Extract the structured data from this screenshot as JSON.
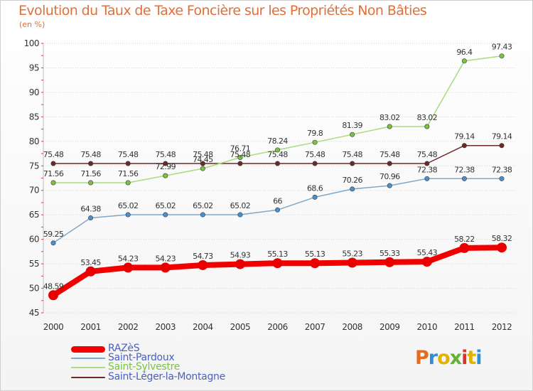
{
  "title": "Evolution du Taux de Taxe Foncière sur les Propriétés Non Bâties",
  "unit": "(en %)",
  "logo_text": "Proxiti",
  "chart_data": {
    "type": "line",
    "title": "Evolution du Taux de Taxe Foncière sur les Propriétés Non Bâties",
    "ylabel": "(en %)",
    "xlabel": "",
    "ylim": [
      45,
      100
    ],
    "yticks": [
      45,
      50,
      55,
      60,
      65,
      70,
      75,
      80,
      85,
      90,
      95,
      100
    ],
    "x": [
      "2000",
      "2001",
      "2002",
      "2003",
      "2004",
      "2005",
      "2006",
      "2007",
      "2008",
      "2009",
      "2010",
      "2011",
      "2012"
    ],
    "series": [
      {
        "name": "Saint-Léger-la-Montagne",
        "color": "#6b2a2a",
        "point_color": "#6b2a2a",
        "values": [
          75.48,
          75.48,
          75.48,
          75.48,
          75.48,
          75.48,
          75.48,
          75.48,
          75.48,
          75.48,
          75.48,
          79.14,
          79.14
        ],
        "labels": [
          "75.48",
          "75.48",
          "75.48",
          "75.48",
          "75.48",
          "75.48",
          "75.48",
          "75.48",
          "75.48",
          "75.48",
          "75.48",
          "79.14",
          "79.14"
        ]
      },
      {
        "name": "Saint-Sylvestre",
        "color": "#a8dc7c",
        "point_color": "#7cc242",
        "values": [
          71.56,
          71.56,
          71.56,
          72.99,
          74.45,
          76.71,
          78.24,
          79.8,
          81.39,
          83.02,
          83.02,
          96.4,
          97.43
        ],
        "labels": [
          "71.56",
          "71.56",
          "71.56",
          "72.99",
          "74.45",
          "76.71",
          "78.24",
          "79.8",
          "81.39",
          "83.02",
          "83.02",
          "96.4",
          "97.43"
        ]
      },
      {
        "name": "Saint-Pardoux",
        "color": "#7ea8cc",
        "point_color": "#4a8fce",
        "values": [
          59.25,
          64.38,
          65.02,
          65.02,
          65.02,
          65.02,
          66,
          68.6,
          70.26,
          70.96,
          72.38,
          72.38,
          72.38
        ],
        "labels": [
          "59.25",
          "64.38",
          "65.02",
          "65.02",
          "65.02",
          "65.02",
          "66",
          "68.6",
          "70.26",
          "70.96",
          "72.38",
          "72.38",
          "72.38"
        ]
      },
      {
        "name": "RAZèS",
        "color": "#f20000",
        "point_color": "#e80000",
        "values": [
          48.59,
          53.45,
          54.23,
          54.23,
          54.73,
          54.93,
          55.13,
          55.13,
          55.23,
          55.33,
          55.43,
          58.22,
          58.32
        ],
        "labels": [
          "48.59",
          "53.45",
          "54.23",
          "54.23",
          "54.73",
          "54.93",
          "55.13",
          "55.13",
          "55.23",
          "55.33",
          "55.43",
          "58.22",
          "58.32"
        ]
      }
    ]
  },
  "legend": [
    {
      "label": "RAZèS",
      "color": "#f20000"
    },
    {
      "label": "Saint-Pardoux",
      "color": "#7ea8cc"
    },
    {
      "label": "Saint-Sylvestre",
      "color": "#a8dc7c"
    },
    {
      "label": "Saint-Léger-la-Montagne",
      "color": "#6b2a2a"
    }
  ]
}
